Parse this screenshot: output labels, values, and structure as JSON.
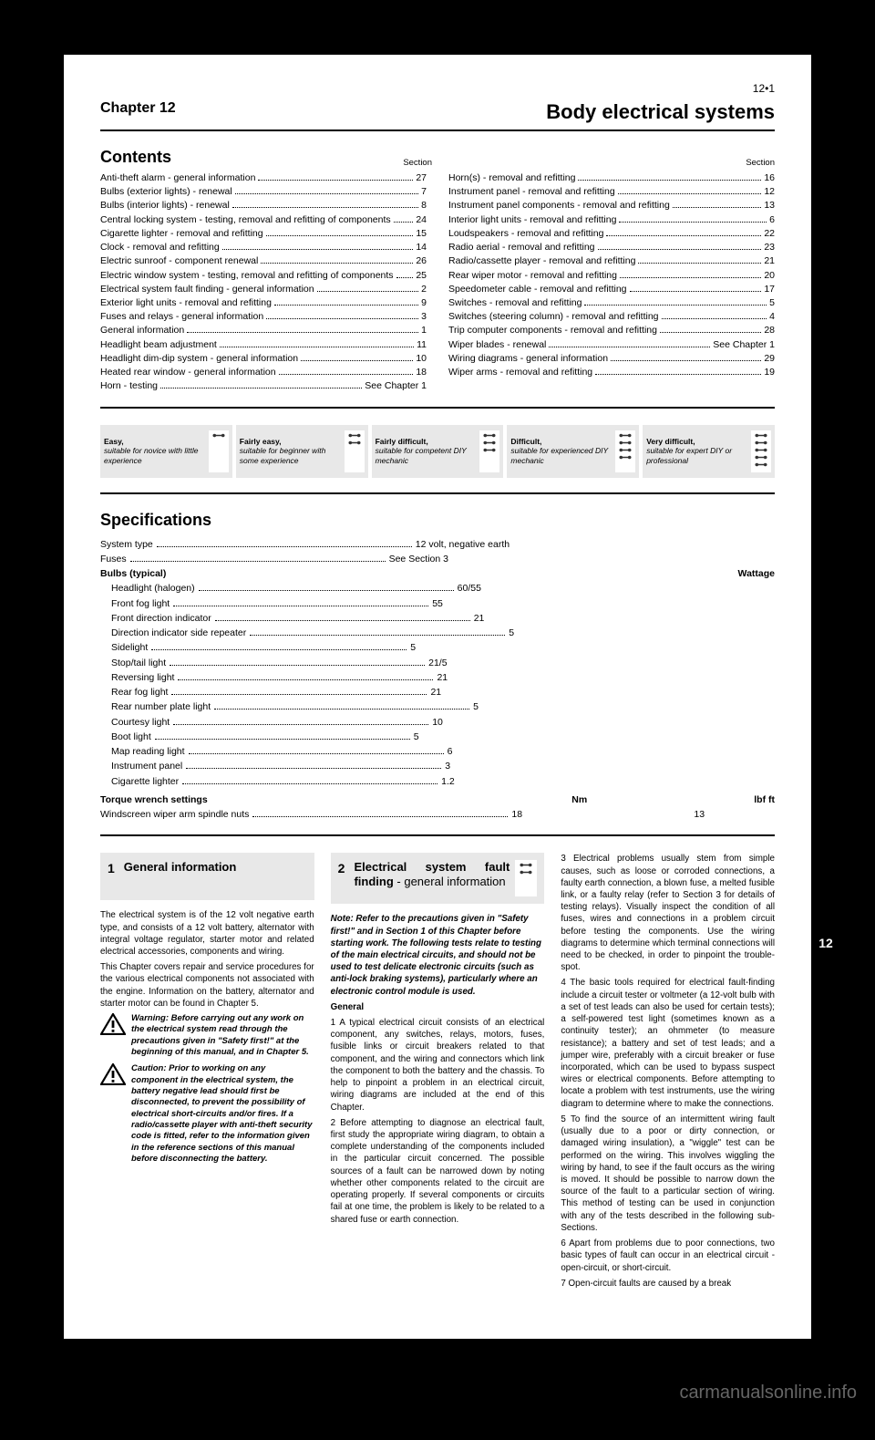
{
  "chapter": {
    "label": "Chapter 12",
    "title": "Body electrical systems"
  },
  "contentsTitle": "Contents",
  "contents": {
    "left": [
      {
        "label": "Anti-theft alarm - general information",
        "section": "27"
      },
      {
        "label": "Bulbs (exterior lights) - renewal",
        "section": "7"
      },
      {
        "label": "Bulbs (interior lights) - renewal",
        "section": "8"
      },
      {
        "label": "Central locking system - testing, removal and refitting of components",
        "section": "24"
      },
      {
        "label": "Cigarette lighter - removal and refitting",
        "section": "15"
      },
      {
        "label": "Clock - removal and refitting",
        "section": "14"
      },
      {
        "label": "Electric sunroof - component renewal",
        "section": "26"
      },
      {
        "label": "Electric window system - testing, removal and refitting of components",
        "section": "25"
      },
      {
        "label": "Electrical system fault finding - general information",
        "section": "2"
      },
      {
        "label": "Exterior light units - removal and refitting",
        "section": "9"
      },
      {
        "label": "Fuses and relays - general information",
        "section": "3"
      },
      {
        "label": "General information",
        "section": "1"
      },
      {
        "label": "Headlight beam adjustment",
        "section": "11"
      },
      {
        "label": "Headlight dim-dip system - general information",
        "section": "10"
      },
      {
        "label": "Heated rear window - general information",
        "section": "18"
      },
      {
        "note": "Horn - testing",
        "ref": "See Chapter 1"
      }
    ],
    "right": [
      {
        "label": "Horn(s) - removal and refitting",
        "section": "16"
      },
      {
        "label": "Instrument panel - removal and refitting",
        "section": "12"
      },
      {
        "label": "Instrument panel components - removal and refitting",
        "section": "13"
      },
      {
        "label": "Interior light units - removal and refitting",
        "section": "6"
      },
      {
        "label": "Loudspeakers - removal and refitting",
        "section": "22"
      },
      {
        "label": "Radio aerial - removal and refitting",
        "section": "23"
      },
      {
        "label": "Radio/cassette player - removal and refitting",
        "section": "21"
      },
      {
        "label": "Rear wiper motor - removal and refitting",
        "section": "20"
      },
      {
        "label": "Speedometer cable - removal and refitting",
        "section": "17"
      },
      {
        "label": "Switches - removal and refitting",
        "section": "5"
      },
      {
        "label": "Switches (steering column) - removal and refitting",
        "section": "4"
      },
      {
        "label": "Trip computer components - removal and refitting",
        "section": "28"
      },
      {
        "note": "Wiper blades - renewal",
        "ref": "See Chapter 1"
      },
      {
        "label": "Wiring diagrams - general information",
        "section": "29"
      },
      {
        "label": "Wiper arms - removal and refitting",
        "section": "19"
      }
    ]
  },
  "sectionLabel": "Section",
  "difficulty": [
    {
      "level": 1,
      "title": "Easy,",
      "desc": "suitable for novice with little experience"
    },
    {
      "level": 2,
      "title": "Fairly easy,",
      "desc": "suitable for beginner with some experience"
    },
    {
      "level": 3,
      "title": "Fairly difficult,",
      "desc": "suitable for competent DIY mechanic"
    },
    {
      "level": 4,
      "title": "Difficult,",
      "desc": "suitable for experienced DIY mechanic"
    },
    {
      "level": 5,
      "title": "Very difficult,",
      "desc": "suitable for expert DIY or professional"
    }
  ],
  "specsTitle": "Specifications",
  "specs": {
    "rows": [
      {
        "label": "System type",
        "value": "12 volt, negative earth"
      },
      {
        "label": "Fuses",
        "value": "See Section 3"
      },
      {
        "label": "Bulbs (typical)",
        "value": "",
        "header": true
      },
      {
        "label": "Headlight (halogen)",
        "value": "60/55",
        "sub": true
      },
      {
        "label": "Front fog light",
        "value": "55",
        "sub": true
      },
      {
        "label": "Front direction indicator",
        "value": "21",
        "sub": true
      },
      {
        "label": "Direction indicator side repeater",
        "value": "5",
        "sub": true
      },
      {
        "label": "Sidelight",
        "value": "5",
        "sub": true
      },
      {
        "label": "Stop/tail light",
        "value": "21/5",
        "sub": true
      },
      {
        "label": "Reversing light",
        "value": "21",
        "sub": true
      },
      {
        "label": "Rear fog light",
        "value": "21",
        "sub": true
      },
      {
        "label": "Rear number plate light",
        "value": "5",
        "sub": true
      },
      {
        "label": "Courtesy light",
        "value": "10",
        "sub": true
      },
      {
        "label": "Boot light",
        "value": "5",
        "sub": true
      },
      {
        "label": "Map reading light",
        "value": "6",
        "sub": true
      },
      {
        "label": "Instrument panel",
        "value": "3",
        "sub": true
      },
      {
        "label": "Cigarette lighter",
        "value": "1.2",
        "sub": true
      }
    ],
    "wattage": "Wattage",
    "torque": {
      "heading": "Torque wrench settings",
      "nm": "Nm",
      "lbf": "lbf ft",
      "row": {
        "label": "Windscreen wiper arm spindle nuts",
        "nm": "18",
        "lbf": "13"
      }
    }
  },
  "section1": {
    "num": "1",
    "title": "General information",
    "paras": [
      "The electrical system is of the 12 volt negative earth type, and consists of a 12 volt battery, alternator with integral voltage regulator, starter motor and related electrical accessories, components and wiring.",
      "This Chapter covers repair and service procedures for the various electrical components not associated with the engine. Information on the battery, alternator and starter motor can be found in Chapter 5."
    ],
    "warnings": [
      "Warning: Before carrying out any work on the electrical system read through the precautions given in \"Safety first!\" at the beginning of this manual, and in Chapter 5.",
      "Caution: Prior to working on any component in the electrical system, the battery negative lead should first be disconnected, to prevent the possibility of electrical short-circuits and/or fires. If a radio/cassette player with anti-theft security code is fitted, refer to the information given in the reference sections of this manual before disconnecting the battery."
    ]
  },
  "section2": {
    "num": "2",
    "title": "Electrical system fault finding",
    "subtitle": " - general information",
    "note": "Note: Refer to the precautions given in \"Safety first!\" and in Section 1 of this Chapter before starting work. The following tests relate to testing of the main electrical circuits, and should not be used to test delicate electronic circuits (such as anti-lock braking systems), particularly where an electronic control module is used.",
    "generalHead": "General",
    "paras": [
      "1 A typical electrical circuit consists of an electrical component, any switches, relays, motors, fuses, fusible links or circuit breakers related to that component, and the wiring and connectors which link the component to both the battery and the chassis. To help to pinpoint a problem in an electrical circuit, wiring diagrams are included at the end of this Chapter.",
      "2 Before attempting to diagnose an electrical fault, first study the appropriate wiring diagram, to obtain a complete understanding of the components included in the particular circuit concerned. The possible sources of a fault can be narrowed down by noting whether other components related to the circuit are operating properly. If several components or circuits fail at one time, the problem is likely to be related to a shared fuse or earth connection."
    ]
  },
  "col3": {
    "paras": [
      "3 Electrical problems usually stem from simple causes, such as loose or corroded connections, a faulty earth connection, a blown fuse, a melted fusible link, or a faulty relay (refer to Section 3 for details of testing relays). Visually inspect the condition of all fuses, wires and connections in a problem circuit before testing the components. Use the wiring diagrams to determine which terminal connections will need to be checked, in order to pinpoint the trouble-spot.",
      "4 The basic tools required for electrical fault-finding include a circuit tester or voltmeter (a 12-volt bulb with a set of test leads can also be used for certain tests); a self-powered test light (sometimes known as a continuity tester); an ohmmeter (to measure resistance); a battery and set of test leads; and a jumper wire, preferably with a circuit breaker or fuse incorporated, which can be used to bypass suspect wires or electrical components. Before attempting to locate a problem with test instruments, use the wiring diagram to determine where to make the connections.",
      "5 To find the source of an intermittent wiring fault (usually due to a poor or dirty connection, or damaged wiring insulation), a \"wiggle\" test can be performed on the wiring. This involves wiggling the wiring by hand, to see if the fault occurs as the wiring is moved. It should be possible to narrow down the source of the fault to a particular section of wiring. This method of testing can be used in conjunction with any of the tests described in the following sub-Sections.",
      "6 Apart from problems due to poor connections, two basic types of fault can occur in an electrical circuit - open-circuit, or short-circuit.",
      "7 Open-circuit faults are caused by a break"
    ]
  },
  "sideTab": "12",
  "pageNum": "12•1",
  "watermark": "carmanualsonline.info"
}
